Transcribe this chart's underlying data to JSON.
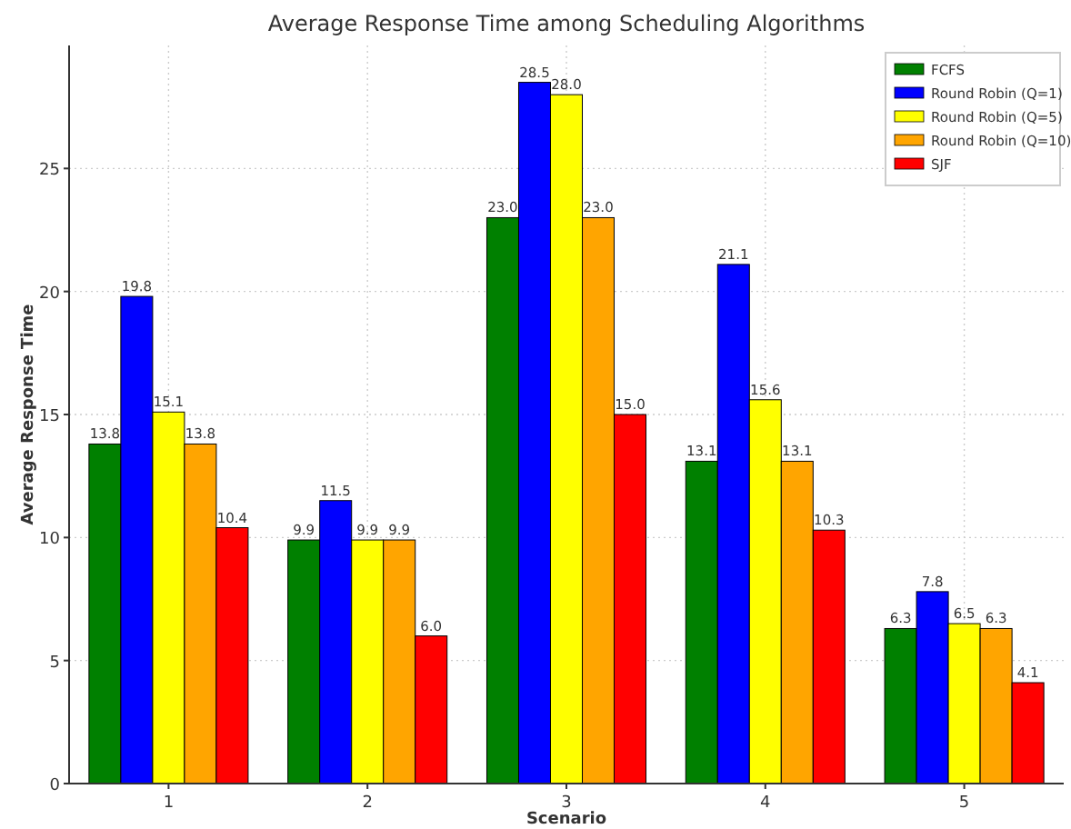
{
  "chart_data": {
    "type": "bar",
    "title": "Average Response Time among Scheduling Algorithms",
    "xlabel": "Scenario",
    "ylabel": "Average Response Time",
    "categories": [
      "1",
      "2",
      "3",
      "4",
      "5"
    ],
    "series": [
      {
        "name": "FCFS",
        "color": "#008000",
        "values": [
          13.8,
          9.9,
          23,
          13.1,
          6.3
        ],
        "value_labels": [
          "13.8",
          "9.9",
          "23.0",
          "13.1",
          "6.3"
        ]
      },
      {
        "name": "Round Robin (Q=1)",
        "color": "#0000ff",
        "values": [
          19.8,
          11.5,
          28.5,
          21.1,
          7.8
        ],
        "value_labels": [
          "19.8",
          "11.5",
          "28.5",
          "21.1",
          "7.8"
        ]
      },
      {
        "name": "Round Robin (Q=5)",
        "color": "#ffff00",
        "values": [
          15.1,
          9.9,
          28,
          15.6,
          6.5
        ],
        "value_labels": [
          "15.1",
          "9.9",
          "28.0",
          "15.6",
          "6.5"
        ]
      },
      {
        "name": "Round Robin (Q=10)",
        "color": "#ffa500",
        "values": [
          13.8,
          9.9,
          23,
          13.1,
          6.3
        ],
        "value_labels": [
          "13.8",
          "9.9",
          "23.0",
          "13.1",
          "6.3"
        ]
      },
      {
        "name": "SJF",
        "color": "#ff0000",
        "values": [
          10.4,
          6,
          15,
          10.3,
          4.1
        ],
        "value_labels": [
          "10.4",
          "6.0",
          "15.0",
          "10.3",
          "4.1"
        ]
      }
    ],
    "ylim": [
      0,
      30
    ],
    "yticks": [
      0,
      5,
      10,
      15,
      20,
      25
    ],
    "grid": true,
    "legend": "top right"
  }
}
